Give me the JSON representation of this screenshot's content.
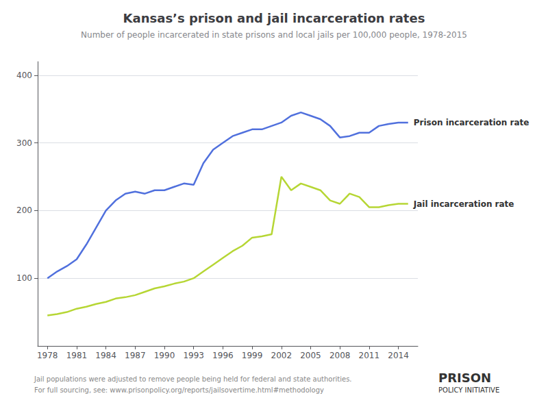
{
  "chart_data": {
    "type": "line",
    "title": "Kansas’s prison and jail incarceration rates",
    "subtitle": "Number of people incarcerated in state prisons and local jails per 100,000 people, 1978-2015",
    "x": [
      1978,
      1979,
      1980,
      1981,
      1982,
      1983,
      1984,
      1985,
      1986,
      1987,
      1988,
      1989,
      1990,
      1991,
      1992,
      1993,
      1994,
      1995,
      1996,
      1997,
      1998,
      1999,
      2000,
      2001,
      2002,
      2003,
      2004,
      2005,
      2006,
      2007,
      2008,
      2009,
      2010,
      2011,
      2012,
      2013,
      2014,
      2015
    ],
    "series": [
      {
        "name": "Prison incarceration rate",
        "values": [
          100,
          110,
          118,
          128,
          150,
          175,
          200,
          215,
          225,
          228,
          225,
          230,
          230,
          235,
          240,
          238,
          270,
          290,
          300,
          310,
          315,
          320,
          320,
          325,
          330,
          340,
          345,
          340,
          335,
          325,
          308,
          310,
          315,
          315,
          325,
          328,
          330,
          330
        ]
      },
      {
        "name": "Jail incarceration rate",
        "values": [
          45,
          47,
          50,
          55,
          58,
          62,
          65,
          70,
          72,
          75,
          80,
          85,
          88,
          92,
          95,
          100,
          110,
          120,
          130,
          140,
          148,
          160,
          162,
          165,
          250,
          230,
          240,
          235,
          230,
          215,
          210,
          225,
          220,
          205,
          205,
          208,
          210,
          210
        ]
      }
    ],
    "xlim": [
      1977,
      2016
    ],
    "xticks": [
      1978,
      1981,
      1984,
      1987,
      1990,
      1993,
      1996,
      1999,
      2002,
      2005,
      2008,
      2011,
      2014
    ],
    "ylim": [
      0,
      420
    ],
    "yticks": [
      100,
      200,
      300,
      400
    ],
    "grid": true,
    "annotations": [
      "Jail populations were adjusted to remove people being held for federal and state authorities.",
      "For full sourcing, see: www.prisonpolicy.org/reports/jailsovertime.html#methodology",
      "PRISON",
      "POLICY INITIATIVE"
    ]
  }
}
